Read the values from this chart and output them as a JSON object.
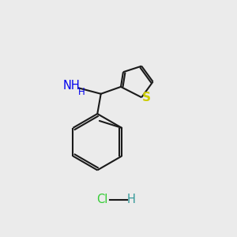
{
  "bg_color": "#ebebeb",
  "bond_color": "#1a1a1a",
  "N_color": "#0000ee",
  "S_color": "#cccc00",
  "Cl_color": "#33cc33",
  "H_color": "#339999",
  "line_width": 1.5,
  "font_size": 10.5,
  "NH_text": "NH",
  "H_sub": "H",
  "S_text": "S",
  "Cl_text": "Cl",
  "H_text": "H"
}
